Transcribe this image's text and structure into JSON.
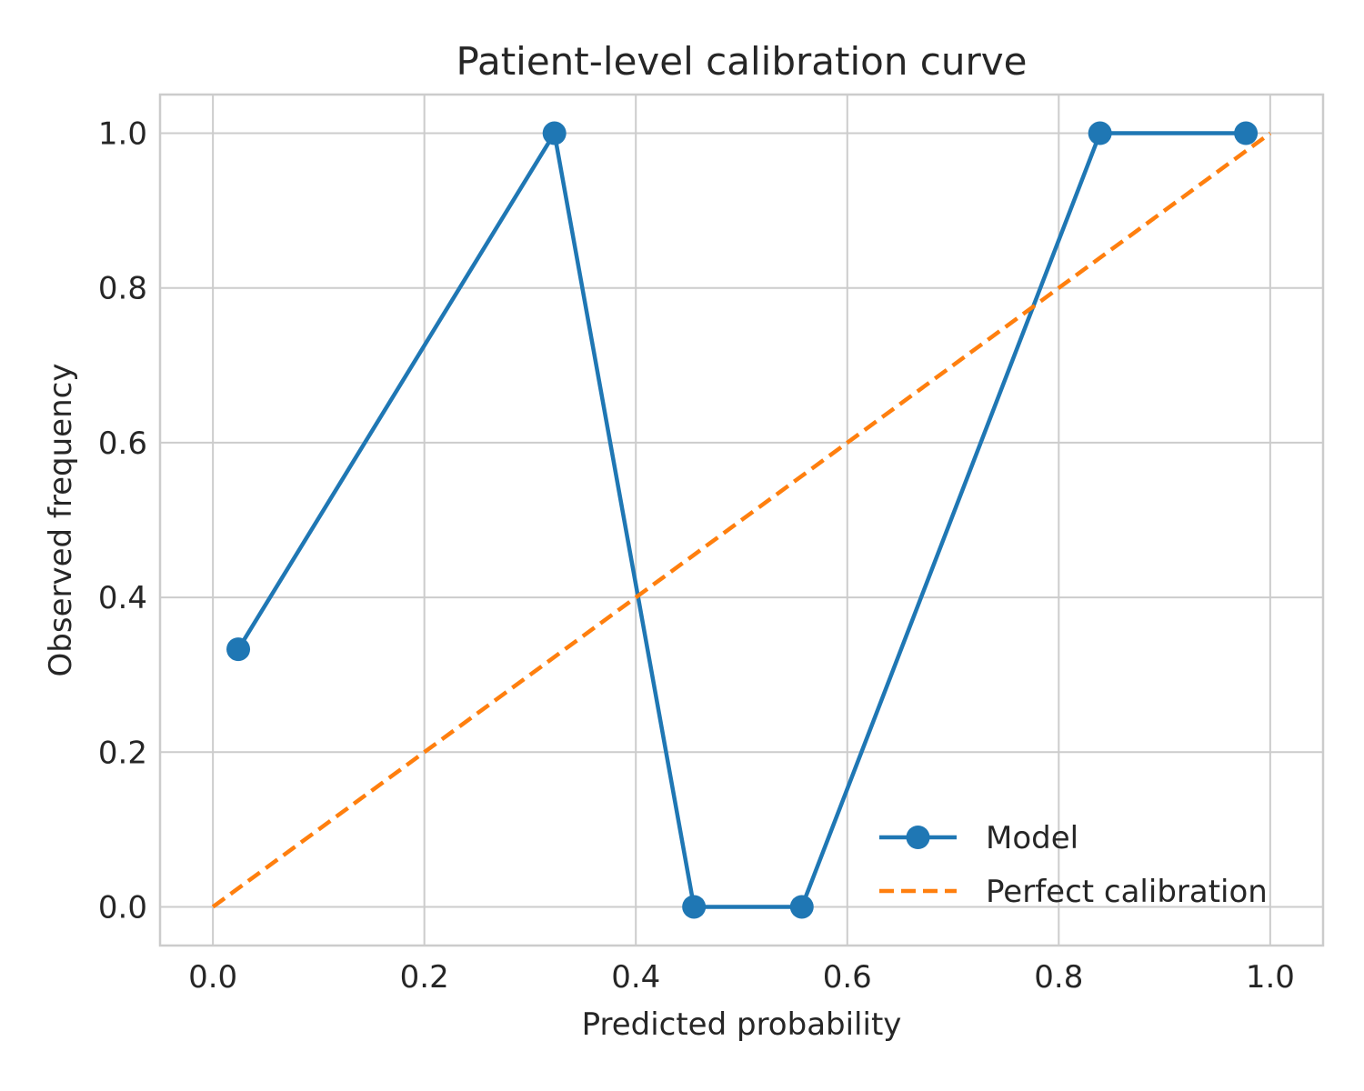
{
  "chart_data": {
    "type": "line",
    "title": "Patient-level calibration curve",
    "xlabel": "Predicted probability",
    "ylabel": "Observed frequency",
    "xlim": [
      -0.05,
      1.05
    ],
    "ylim": [
      -0.05,
      1.05
    ],
    "xticks": [
      0.0,
      0.2,
      0.4,
      0.6,
      0.8,
      1.0
    ],
    "yticks": [
      0.0,
      0.2,
      0.4,
      0.6,
      0.8,
      1.0
    ],
    "xtick_labels": [
      "0.0",
      "0.2",
      "0.4",
      "0.6",
      "0.8",
      "1.0"
    ],
    "ytick_labels": [
      "0.0",
      "0.2",
      "0.4",
      "0.6",
      "0.8",
      "1.0"
    ],
    "grid": true,
    "legend_position": "lower-right",
    "series": [
      {
        "name": "Model",
        "color": "#1f77b4",
        "style": "solid",
        "marker": "circle",
        "x": [
          0.024,
          0.323,
          0.455,
          0.557,
          0.839,
          0.977
        ],
        "y": [
          0.333,
          1.0,
          0.0,
          0.0,
          1.0,
          1.0
        ]
      },
      {
        "name": "Perfect calibration",
        "color": "#ff7f0e",
        "style": "dashed",
        "marker": "none",
        "x": [
          0.0,
          1.0
        ],
        "y": [
          0.0,
          1.0
        ]
      }
    ]
  }
}
